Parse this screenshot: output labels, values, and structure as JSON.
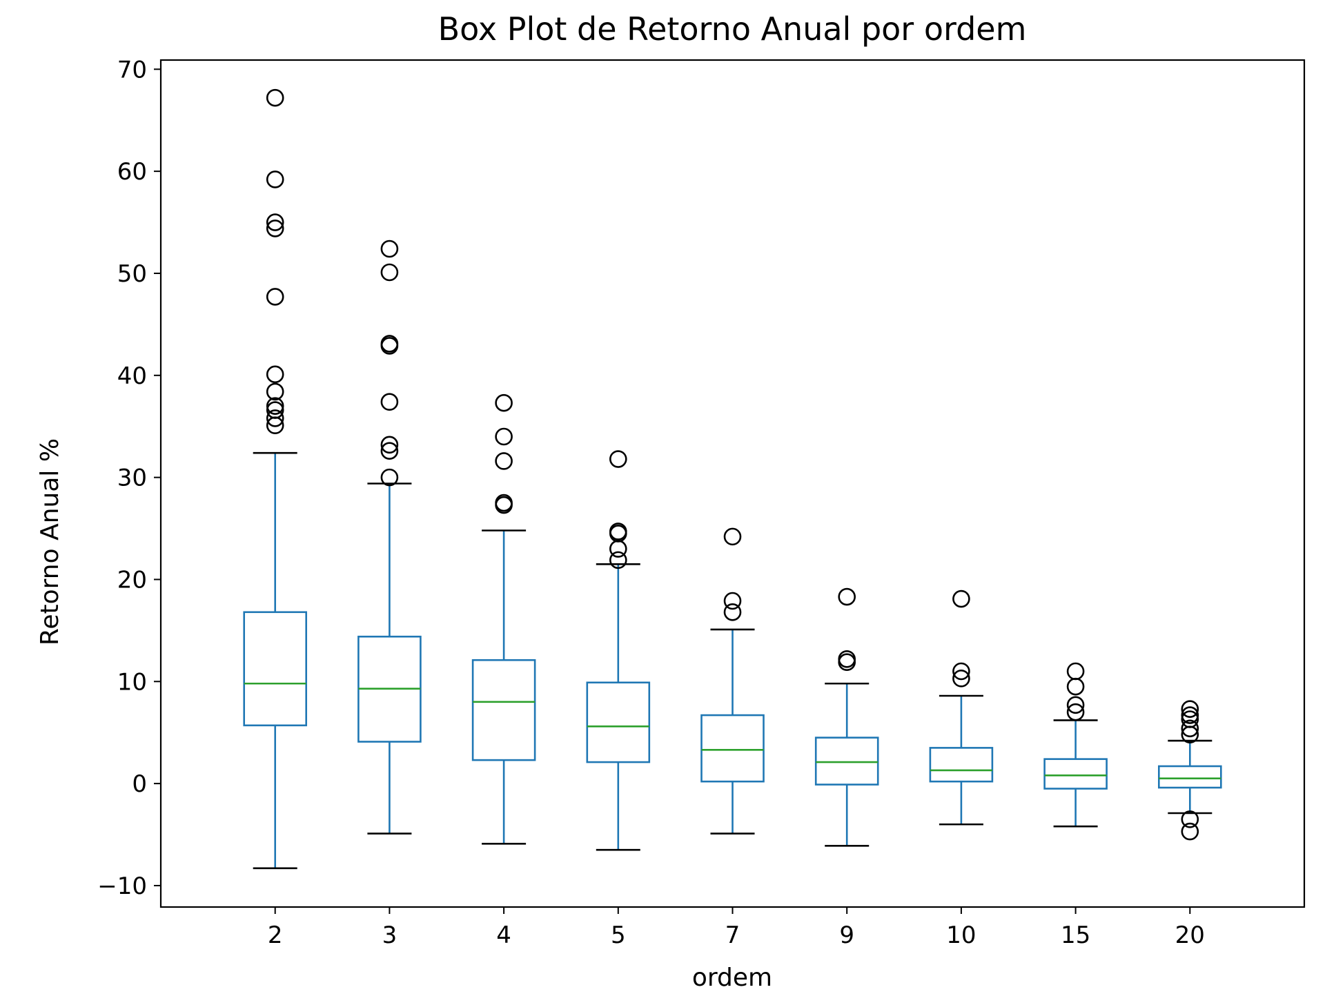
{
  "chart_data": {
    "type": "box",
    "title": "Box Plot de Retorno Anual por ordem",
    "xlabel": "ordem",
    "ylabel": "Retorno Anual %",
    "ylim": [
      -12.1,
      70.9
    ],
    "y_ticks": [
      -10,
      0,
      10,
      20,
      30,
      40,
      50,
      60,
      70
    ],
    "y_tick_labels": [
      "−10",
      "0",
      "10",
      "20",
      "30",
      "40",
      "50",
      "60",
      "70"
    ],
    "grid": false,
    "colors": {
      "box": "#1f77b4",
      "median": "#2ca02c",
      "whisker": "#1f77b4",
      "cap": "#000000",
      "flier": "#000000",
      "axes": "#000000"
    },
    "categories": [
      "2",
      "3",
      "4",
      "5",
      "7",
      "9",
      "10",
      "15",
      "20"
    ],
    "boxes": [
      {
        "category": "2",
        "whislo": -8.3,
        "q1": 5.7,
        "med": 9.8,
        "q3": 16.8,
        "whishi": 32.4,
        "fliers": [
          35.1,
          35.8,
          36.6,
          37.0,
          38.4,
          40.1,
          47.7,
          54.4,
          55.0,
          59.2,
          67.2
        ]
      },
      {
        "category": "3",
        "whislo": -4.9,
        "q1": 4.1,
        "med": 9.3,
        "q3": 14.4,
        "whishi": 29.4,
        "fliers": [
          30.0,
          32.6,
          33.2,
          37.4,
          42.9,
          43.1,
          50.1,
          52.4
        ]
      },
      {
        "category": "4",
        "whislo": -5.9,
        "q1": 2.3,
        "med": 8.0,
        "q3": 12.1,
        "whishi": 24.8,
        "fliers": [
          27.3,
          27.5,
          31.6,
          34.0,
          37.3
        ]
      },
      {
        "category": "5",
        "whislo": -6.5,
        "q1": 2.1,
        "med": 5.6,
        "q3": 9.9,
        "whishi": 21.5,
        "fliers": [
          21.9,
          23.0,
          24.5,
          24.7,
          31.8
        ]
      },
      {
        "category": "7",
        "whislo": -4.9,
        "q1": 0.2,
        "med": 3.3,
        "q3": 6.7,
        "whishi": 15.1,
        "fliers": [
          16.8,
          17.9,
          24.2
        ]
      },
      {
        "category": "9",
        "whislo": -6.1,
        "q1": -0.1,
        "med": 2.1,
        "q3": 4.5,
        "whishi": 9.8,
        "fliers": [
          11.9,
          12.2,
          18.3
        ]
      },
      {
        "category": "10",
        "whislo": -4.0,
        "q1": 0.2,
        "med": 1.3,
        "q3": 3.5,
        "whishi": 8.6,
        "fliers": [
          10.3,
          11.0,
          18.1
        ]
      },
      {
        "category": "15",
        "whislo": -4.2,
        "q1": -0.5,
        "med": 0.8,
        "q3": 2.4,
        "whishi": 6.2,
        "fliers": [
          7.0,
          7.7,
          9.5,
          11.0
        ]
      },
      {
        "category": "20",
        "whislo": -2.9,
        "q1": -0.4,
        "med": 0.5,
        "q3": 1.7,
        "whishi": 4.2,
        "fliers": [
          -4.7,
          -3.5,
          4.8,
          5.4,
          6.3,
          6.7,
          7.3
        ]
      }
    ]
  }
}
